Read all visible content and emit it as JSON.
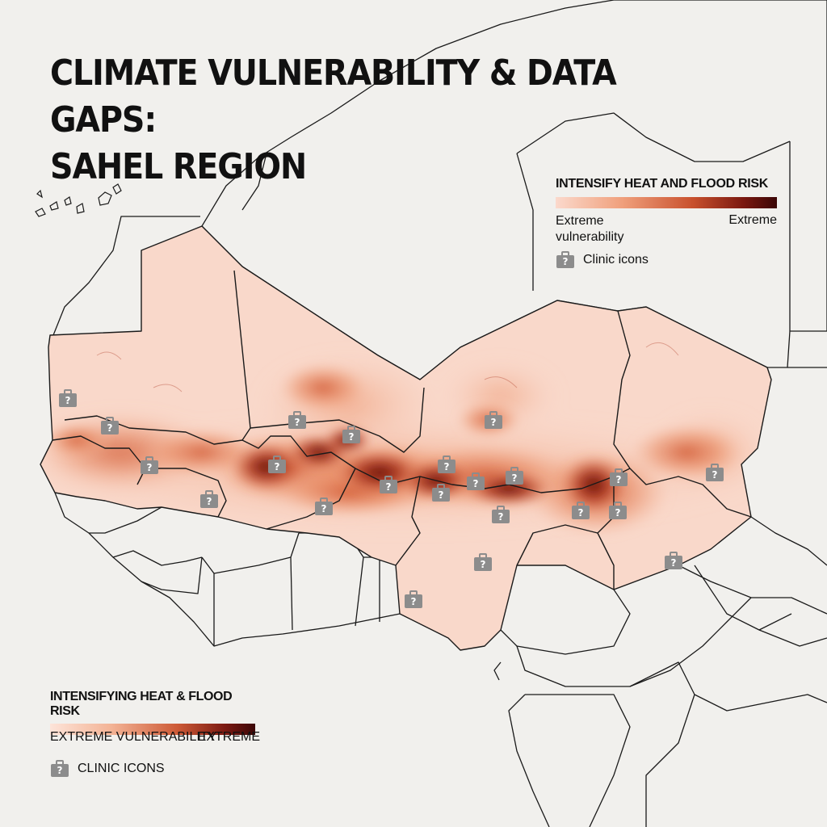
{
  "map": {
    "title_line1": "CLIMATE VULNERABILITY & DATA GAPS:",
    "title_line2": "SAHEL REGION"
  },
  "legend_top": {
    "title": "INTENSIFY HEAT AND FLOOD RISK",
    "low_label": "Extreme vulnerability",
    "high_label": "Extreme",
    "clinic_label": "Clinic icons",
    "ramp_colors": [
      "#fbd9cc",
      "#f0a07c",
      "#c8502d",
      "#7a1810",
      "#3a0606"
    ]
  },
  "legend_bottom": {
    "title": "INTENSIFYING HEAT & FLOOD RISK",
    "low_label": "EXTREME VULNERABILITY",
    "high_label": "EXTREME",
    "clinic_label": "CLINIC ICONS"
  },
  "colors": {
    "background": "#f1f0ed",
    "low_risk": "#f9d8ca",
    "medium_risk": "#e07a52",
    "high_risk": "#a8301a",
    "extreme_risk": "#5a0a08",
    "clinic_icon": "#8c8c8c",
    "border": "#1a1a1a"
  },
  "icons": {
    "clinic": "clinic-question-icon"
  },
  "clinic_count": 22
}
